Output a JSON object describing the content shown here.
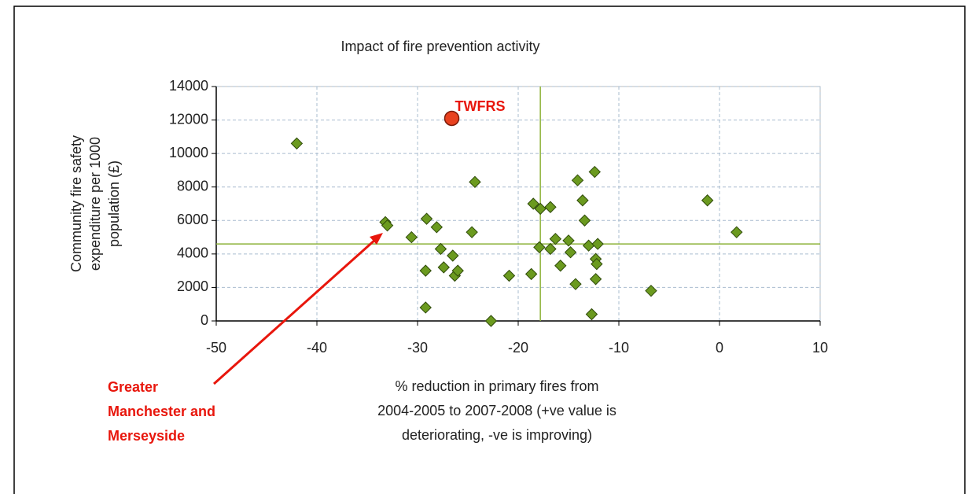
{
  "chart_data": {
    "type": "scatter",
    "title": "Impact of fire prevention activity",
    "x_label": [
      "% reduction in primary fires from",
      "2004-2005 to 2007-2008 (+ve value is",
      "deteriorating, -ve is improving)"
    ],
    "y_label": [
      "Community fire safety",
      "expenditure per 1000",
      "population (£)"
    ],
    "xlim": [
      -50,
      10
    ],
    "xticks": [
      -50,
      -40,
      -30,
      -20,
      -10,
      0,
      10
    ],
    "ylim": [
      0,
      14000
    ],
    "yticks": [
      0,
      2000,
      4000,
      6000,
      8000,
      10000,
      12000,
      14000
    ],
    "grid": true,
    "reference_x": -17.8,
    "reference_y": 4600,
    "reference_color": "#8db33a",
    "series": [
      {
        "color": "#6b9a1f",
        "marker": "diamond",
        "x": [
          -42,
          -33.2,
          -33,
          -30.6,
          -29.1,
          -29.2,
          -29.2,
          -28.1,
          -27.7,
          -27.4,
          -26.5,
          -26.3,
          -26,
          -24.3,
          -24.6,
          -22.7,
          -20.9,
          -18.7,
          -18.5,
          -17.8,
          -16.8,
          -17.9,
          -16.8,
          -16.3,
          -15.8,
          -15,
          -14.8,
          -14.3,
          -14.1,
          -13.6,
          -13.4,
          -13,
          -12.4,
          -12.3,
          -12.2,
          -12.3,
          -12.7,
          -12.1,
          -6.8,
          -1.2,
          1.7
        ],
        "values": [
          10600,
          5900,
          5700,
          5000,
          6100,
          3000,
          800,
          5600,
          4300,
          3200,
          3900,
          2700,
          3000,
          8300,
          5300,
          0,
          2700,
          2800,
          7000,
          6700,
          6800,
          4400,
          4300,
          4900,
          3300,
          4800,
          4100,
          2200,
          8400,
          7200,
          6000,
          4500,
          8900,
          3700,
          3400,
          2500,
          400,
          4600,
          1800,
          7200,
          5300
        ]
      },
      {
        "name": "TWFRS",
        "color": "#e8411f",
        "marker": "circle",
        "x": [
          -26.6
        ],
        "values": [
          12100
        ]
      }
    ],
    "annotation": [
      "Greater",
      "Manchester and",
      "Merseyside"
    ],
    "annotation_color": "#e8160c"
  }
}
